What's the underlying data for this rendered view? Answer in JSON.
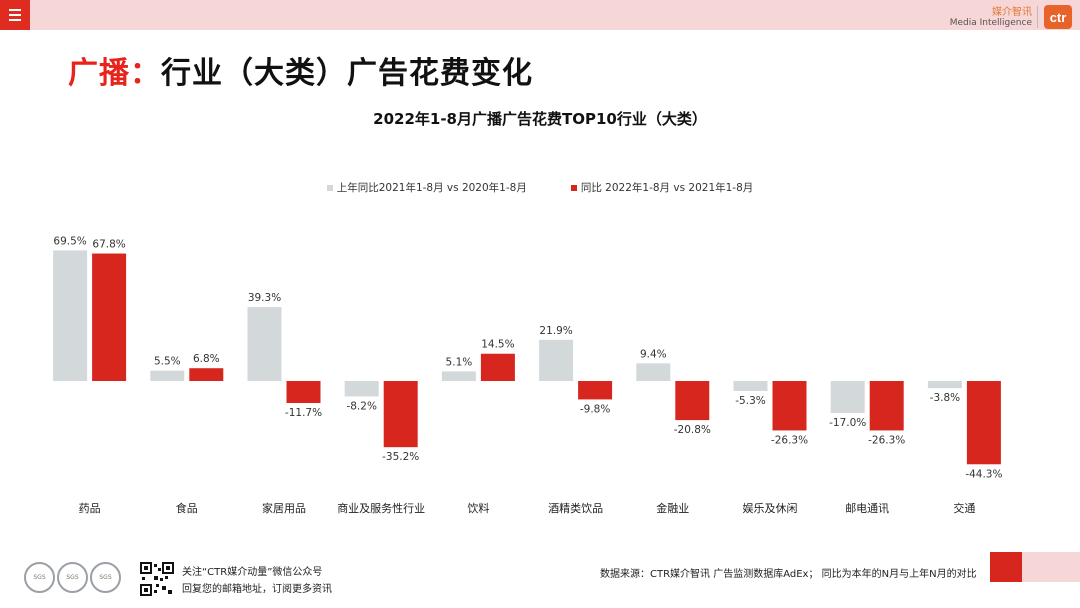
{
  "header": {
    "brand_cn": "媒介智讯",
    "brand_en": "Media Intelligence",
    "logo_text": "ctr"
  },
  "page_title": {
    "prefix": "广播：",
    "text": "行业（大类）广告花费变化"
  },
  "colors": {
    "accent": "#e8231b",
    "series_prev": "#d3d8db",
    "series_curr": "#d7261e",
    "topbar": "#f6d6d6"
  },
  "chart_data": {
    "type": "bar",
    "title": "2022年1-8月广播广告花费TOP10行业（大类）",
    "categories": [
      "药品",
      "食品",
      "家居用品",
      "商业及服务性行业",
      "饮料",
      "酒精类饮品",
      "金融业",
      "娱乐及休闲",
      "邮电通讯",
      "交通"
    ],
    "series": [
      {
        "name": "上年同比2021年1-8月 vs 2020年1-8月",
        "values": [
          69.5,
          5.5,
          39.3,
          -8.2,
          5.1,
          21.9,
          9.4,
          -5.3,
          -17.0,
          -3.8
        ],
        "labels": [
          "69.5%",
          "5.5%",
          "39.3%",
          "-8.2%",
          "5.1%",
          "21.9%",
          "9.4%",
          "-5.3%",
          "-17.0%",
          "-3.8%"
        ]
      },
      {
        "name": "同比 2022年1-8月 vs 2021年1-8月",
        "values": [
          67.8,
          6.8,
          -11.7,
          -35.2,
          14.5,
          -9.8,
          -20.8,
          -26.3,
          -26.3,
          -44.3
        ],
        "labels": [
          "67.8%",
          "6.8%",
          "-11.7%",
          "-35.2%",
          "14.5%",
          "-9.8%",
          "-20.8%",
          "-26.3%",
          "-26.3%",
          "-44.3%"
        ]
      }
    ],
    "ylim": [
      -50,
      75
    ],
    "legend_position": "top-center",
    "grid": false
  },
  "footer": {
    "badges": [
      "SGS",
      "SGS",
      "SGS"
    ],
    "follow_line1": "关注“CTR媒介动量”微信公众号",
    "follow_line2": "回复您的邮箱地址，订阅更多资讯",
    "source": "数据来源：CTR媒介智讯 广告监测数据库AdEx；  同比为本年的N月与上年N月的对比"
  }
}
